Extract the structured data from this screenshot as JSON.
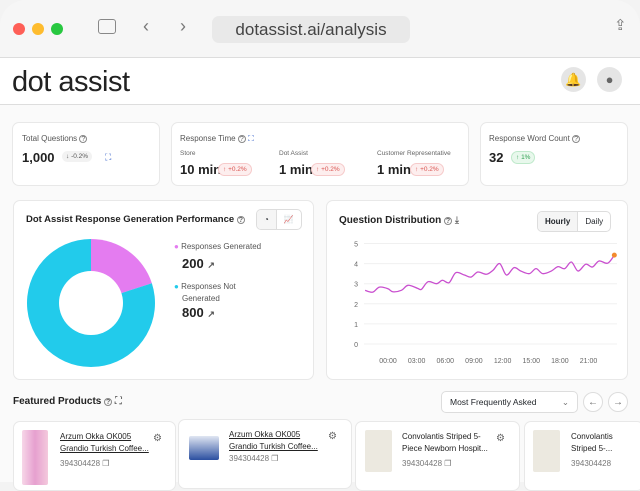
{
  "browser": {
    "url": "dotassist.ai/analysis"
  },
  "header": {
    "logo": "dot assist"
  },
  "stats": {
    "total_questions": {
      "label": "Total Questions",
      "value": "1,000",
      "change": "-0.2%"
    },
    "response_time": {
      "label": "Response Time",
      "items": [
        {
          "label": "Store",
          "value": "10 min",
          "change": "+0.2%"
        },
        {
          "label": "Dot Assist",
          "value": "1 min",
          "change": "+0.2%"
        },
        {
          "label": "Customer Representative",
          "value": "1 min",
          "change": "+0.2%"
        }
      ]
    },
    "word_count": {
      "label": "Response Word Count",
      "value": "32",
      "change": "1%"
    }
  },
  "performance": {
    "title": "Dot Assist Response Generation Performance",
    "colors": {
      "generated": "#e47cf0",
      "not_generated": "#22cbeb"
    },
    "legend": [
      {
        "label": "Responses Generated",
        "value": "200"
      },
      {
        "label": "Responses Not Generated",
        "value": "800"
      }
    ]
  },
  "distribution": {
    "title": "Question Distribution",
    "toggle": [
      "Hourly",
      "Daily"
    ],
    "selected": "Hourly"
  },
  "chart_data": [
    {
      "type": "pie",
      "donut": true,
      "values": [
        200,
        800
      ],
      "categories": [
        "Responses Generated",
        "Responses Not Generated"
      ]
    },
    {
      "type": "line",
      "color": "#c94fcf",
      "ylim": [
        0,
        5
      ],
      "yticks": [
        "0",
        "1",
        "2",
        "3",
        "4",
        "5"
      ],
      "xticks": [
        "00:00",
        "03:00",
        "06:00",
        "09:00",
        "12:00",
        "15:00",
        "18:00",
        "21:00"
      ],
      "x_hours": [
        -2.4,
        -1.6,
        -0.9,
        0,
        0.5,
        1.4,
        2.1,
        3.1,
        3.5,
        4.2,
        5.1,
        5.7,
        6.4,
        7.1,
        8.0,
        8.7,
        9.4,
        10.3,
        11.0,
        11.7,
        12.4,
        13.2,
        13.9,
        14.8,
        15.5,
        16.2,
        17.1,
        17.8,
        18.5,
        19.2,
        19.9,
        20.7,
        21.4,
        22.1,
        23.0,
        23.7
      ],
      "y": [
        2.67,
        2.58,
        2.83,
        2.75,
        2.6,
        2.67,
        2.92,
        2.77,
        2.72,
        3.1,
        3.0,
        3.17,
        3.05,
        3.55,
        3.43,
        3.33,
        3.58,
        3.47,
        3.67,
        4.0,
        3.43,
        3.8,
        3.63,
        3.5,
        3.75,
        3.5,
        3.63,
        3.85,
        3.75,
        4.08,
        3.63,
        3.97,
        3.83,
        4.13,
        4.02,
        4.42
      ],
      "grid": true
    }
  ],
  "featured": {
    "title": "Featured Products",
    "sort": "Most Frequently Asked",
    "products": [
      {
        "name1": "Arzum Okka OK005",
        "name2": "Grandio Turkish Coffee...",
        "id": "394304428"
      },
      {
        "name1": "Arzum Okka OK005",
        "name2": "Grandio Turkish Coffee...",
        "id": "394304428"
      },
      {
        "name1": "Convolantis Striped 5-",
        "name2": "Piece Newborn Hospit...",
        "id": "394304428"
      },
      {
        "name1": "Convolantis",
        "name2": "Striped 5-...",
        "id": "394304428"
      }
    ]
  }
}
